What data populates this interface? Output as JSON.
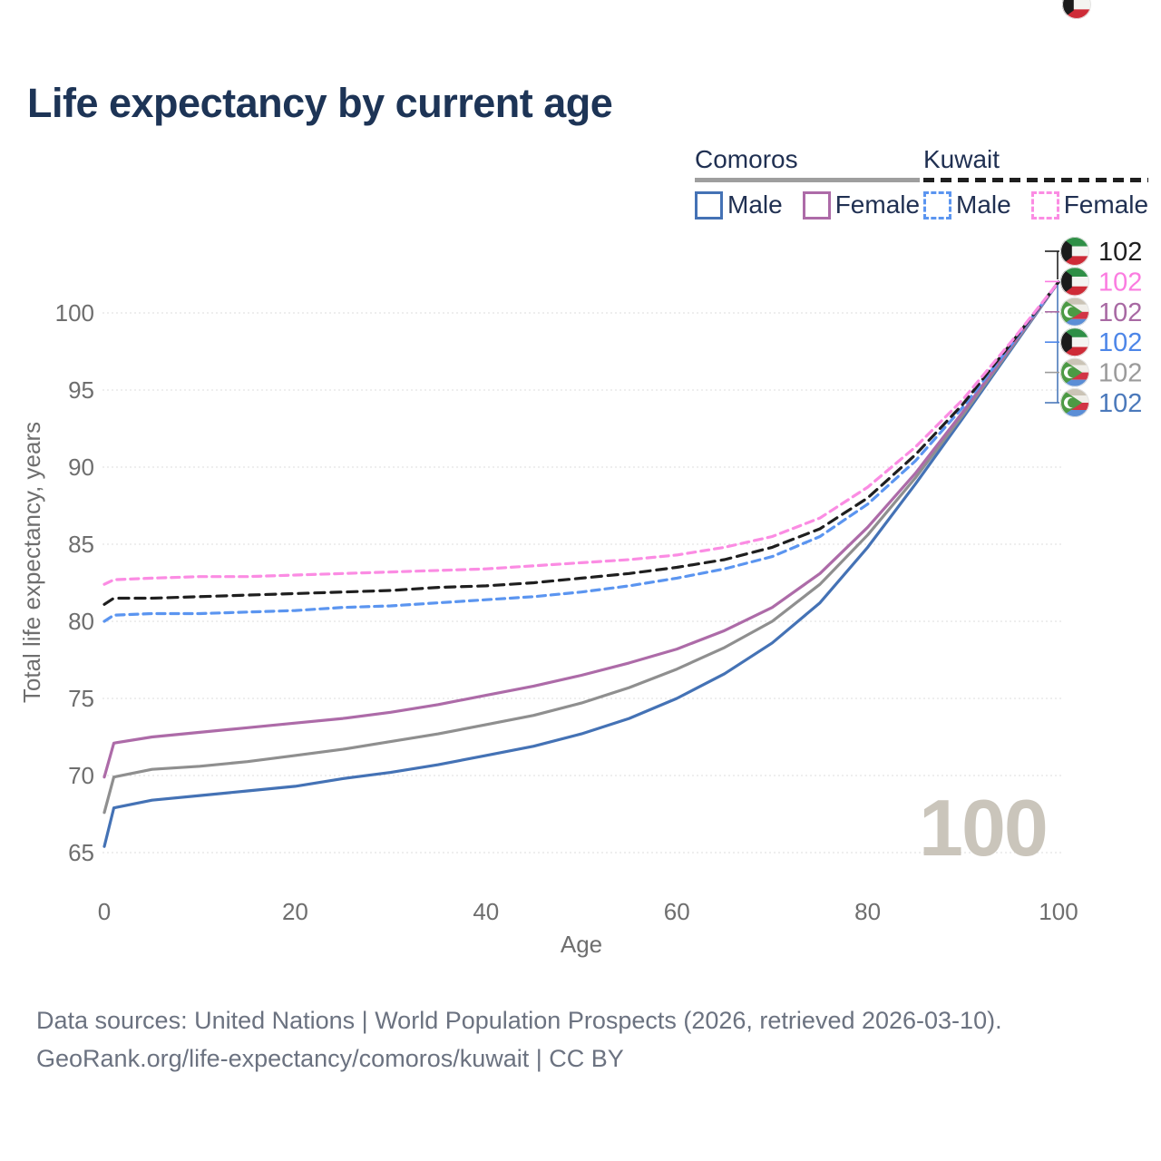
{
  "title": "Life expectancy by current age",
  "watermark": "100",
  "legend": {
    "groups": [
      {
        "label": "Comoros",
        "line_style": "solid",
        "line_color": "#9e9e9e",
        "items": [
          {
            "label": "Male",
            "series": "comoros-male"
          },
          {
            "label": "Female",
            "series": "comoros-female"
          }
        ]
      },
      {
        "label": "Kuwait",
        "line_style": "dashed",
        "line_color": "#1f1f1f",
        "items": [
          {
            "label": "Male",
            "series": "kuwait-male"
          },
          {
            "label": "Female",
            "series": "kuwait-female"
          }
        ]
      }
    ]
  },
  "chart_data": {
    "type": "line",
    "title": "Life expectancy by current age",
    "xlabel": "Age",
    "ylabel": "Total life expectancy, years",
    "x_ticks": [
      0,
      20,
      40,
      60,
      80,
      100
    ],
    "y_ticks": [
      65,
      70,
      75,
      80,
      85,
      90,
      95,
      100
    ],
    "xlim": [
      0,
      100
    ],
    "ylim": [
      65,
      103
    ],
    "grid": "horizontal-dotted",
    "legend_position": "top-right",
    "x": [
      0,
      1,
      5,
      10,
      15,
      20,
      25,
      30,
      35,
      40,
      45,
      50,
      55,
      60,
      65,
      70,
      75,
      80,
      85,
      90,
      95,
      100
    ],
    "series": [
      {
        "key": "comoros-male",
        "name": "Comoros Male",
        "country": "Comoros",
        "color": "#4472b5",
        "dashed": false,
        "values": [
          65.4,
          67.9,
          68.4,
          68.7,
          69.0,
          69.3,
          69.8,
          70.2,
          70.7,
          71.3,
          71.9,
          72.7,
          73.7,
          75.0,
          76.6,
          78.6,
          81.2,
          84.8,
          88.9,
          93.2,
          97.6,
          102
        ]
      },
      {
        "key": "comoros-total",
        "name": "Comoros",
        "country": "Comoros",
        "color": "#8f8f8f",
        "dashed": false,
        "values": [
          67.6,
          69.9,
          70.4,
          70.6,
          70.9,
          71.3,
          71.7,
          72.2,
          72.7,
          73.3,
          73.9,
          74.7,
          75.7,
          76.9,
          78.3,
          80.0,
          82.4,
          85.6,
          89.3,
          93.4,
          97.7,
          102
        ]
      },
      {
        "key": "comoros-female",
        "name": "Comoros Female",
        "country": "Comoros",
        "color": "#ad6ba8",
        "dashed": false,
        "values": [
          69.9,
          72.1,
          72.5,
          72.8,
          73.1,
          73.4,
          73.7,
          74.1,
          74.6,
          75.2,
          75.8,
          76.5,
          77.3,
          78.2,
          79.4,
          80.9,
          83.1,
          86.1,
          89.6,
          93.6,
          97.8,
          102
        ]
      },
      {
        "key": "kuwait-male",
        "name": "Kuwait Male",
        "country": "Kuwait",
        "color": "#5b95f0",
        "dashed": true,
        "values": [
          80.0,
          80.4,
          80.5,
          80.5,
          80.6,
          80.7,
          80.9,
          81.0,
          81.2,
          81.4,
          81.6,
          81.9,
          82.3,
          82.8,
          83.4,
          84.2,
          85.5,
          87.6,
          90.4,
          93.9,
          97.9,
          102
        ]
      },
      {
        "key": "kuwait-total",
        "name": "Kuwait",
        "country": "Kuwait",
        "color": "#1f1f1f",
        "dashed": true,
        "values": [
          81.1,
          81.5,
          81.5,
          81.6,
          81.7,
          81.8,
          81.9,
          82.0,
          82.2,
          82.3,
          82.5,
          82.8,
          83.1,
          83.5,
          84.0,
          84.8,
          86.0,
          88.0,
          90.8,
          94.1,
          98.0,
          102
        ]
      },
      {
        "key": "kuwait-female",
        "name": "Kuwait Female",
        "country": "Kuwait",
        "color": "#fb8ce3",
        "dashed": true,
        "values": [
          82.4,
          82.7,
          82.8,
          82.9,
          82.9,
          83.0,
          83.1,
          83.2,
          83.3,
          83.4,
          83.6,
          83.8,
          84.0,
          84.3,
          84.8,
          85.5,
          86.7,
          88.7,
          91.3,
          94.4,
          98.1,
          102
        ]
      }
    ]
  },
  "end_labels": [
    {
      "flag": "kuwait",
      "value": "102",
      "color": "#1f1f1f",
      "series": "kuwait-total"
    },
    {
      "flag": "kuwait",
      "value": "102",
      "color": "#fb7ce0",
      "series": "kuwait-female"
    },
    {
      "flag": "comoros",
      "value": "102",
      "color": "#a869a3",
      "series": "comoros-female"
    },
    {
      "flag": "kuwait",
      "value": "102",
      "color": "#4d86e8",
      "series": "kuwait-male"
    },
    {
      "flag": "comoros",
      "value": "102",
      "color": "#9b9b9b",
      "series": "comoros-total"
    },
    {
      "flag": "comoros",
      "value": "102",
      "color": "#4b79bb",
      "series": "comoros-male"
    }
  ],
  "footer": {
    "line1": "Data sources: United Nations | World Population Prospects (2026, retrieved 2026-03-10).",
    "line2": "GeoRank.org/life-expectancy/comoros/kuwait | CC BY"
  }
}
